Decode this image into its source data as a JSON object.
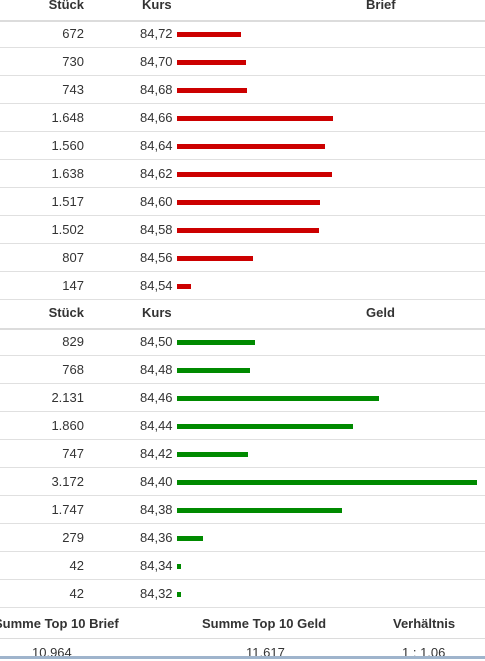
{
  "ask_header": {
    "stueck": "Stück",
    "kurs": "Kurs",
    "bar": "Brief"
  },
  "ask_rows": [
    {
      "stueck": "672",
      "kurs": "84,72",
      "qty": 672
    },
    {
      "stueck": "730",
      "kurs": "84,70",
      "qty": 730
    },
    {
      "stueck": "743",
      "kurs": "84,68",
      "qty": 743
    },
    {
      "stueck": "1.648",
      "kurs": "84,66",
      "qty": 1648
    },
    {
      "stueck": "1.560",
      "kurs": "84,64",
      "qty": 1560
    },
    {
      "stueck": "1.638",
      "kurs": "84,62",
      "qty": 1638
    },
    {
      "stueck": "1.517",
      "kurs": "84,60",
      "qty": 1517
    },
    {
      "stueck": "1.502",
      "kurs": "84,58",
      "qty": 1502
    },
    {
      "stueck": "807",
      "kurs": "84,56",
      "qty": 807
    },
    {
      "stueck": "147",
      "kurs": "84,54",
      "qty": 147
    }
  ],
  "bid_header": {
    "stueck": "Stück",
    "kurs": "Kurs",
    "bar": "Geld"
  },
  "bid_rows": [
    {
      "stueck": "829",
      "kurs": "84,50",
      "qty": 829
    },
    {
      "stueck": "768",
      "kurs": "84,48",
      "qty": 768
    },
    {
      "stueck": "2.131",
      "kurs": "84,46",
      "qty": 2131
    },
    {
      "stueck": "1.860",
      "kurs": "84,44",
      "qty": 1860
    },
    {
      "stueck": "747",
      "kurs": "84,42",
      "qty": 747
    },
    {
      "stueck": "3.172",
      "kurs": "84,40",
      "qty": 3172
    },
    {
      "stueck": "1.747",
      "kurs": "84,38",
      "qty": 1747
    },
    {
      "stueck": "279",
      "kurs": "84,36",
      "qty": 279
    },
    {
      "stueck": "42",
      "kurs": "84,34",
      "qty": 42
    },
    {
      "stueck": "42",
      "kurs": "84,32",
      "qty": 42
    }
  ],
  "max_qty": 3172,
  "colors": {
    "ask": "#cc0000",
    "bid": "#008a00"
  },
  "summary": {
    "brief_label": "Summe Top 10 Brief",
    "geld_label": "Summe Top 10 Geld",
    "ratio_label": "Verhältnis",
    "brief_value": "10.964",
    "geld_value": "11.617",
    "ratio_value": "1 : 1,06"
  }
}
